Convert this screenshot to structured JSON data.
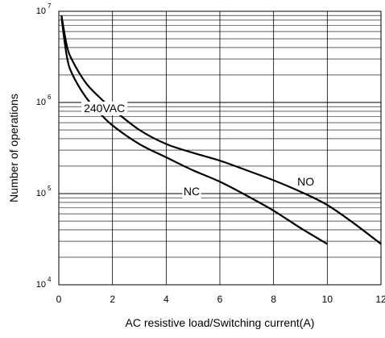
{
  "chart_data": {
    "type": "line",
    "title": "",
    "xlabel": "AC resistive load/Switching current(A)",
    "ylabel": "Number of operations",
    "xlim": [
      0,
      12
    ],
    "ylim": [
      10000,
      10000000
    ],
    "yscale": "log",
    "grid": true,
    "x_ticks": [
      "0",
      "2",
      "4",
      "6",
      "8",
      "10",
      "12"
    ],
    "y_ticks": [
      {
        "base": "10",
        "exp": "4",
        "value": 10000
      },
      {
        "base": "10",
        "exp": "5",
        "value": 100000
      },
      {
        "base": "10",
        "exp": "6",
        "value": 1000000
      },
      {
        "base": "10",
        "exp": "7",
        "value": 10000000
      }
    ],
    "annotations": [
      {
        "text": "240VAC",
        "x": 1.7,
        "y": 800000
      },
      {
        "text": "NO",
        "x": 9.2,
        "y": 125000
      },
      {
        "text": "NC",
        "x": 4.95,
        "y": 98000
      }
    ],
    "series": [
      {
        "name": "NO",
        "x": [
          0.1,
          0.3,
          0.5,
          1,
          1.5,
          2,
          3,
          4,
          5,
          6,
          7,
          8,
          9,
          10,
          11,
          12
        ],
        "y": [
          9000000,
          4200000,
          2900000,
          1650000,
          1150000,
          850000,
          500000,
          350000,
          280000,
          230000,
          180000,
          140000,
          105000,
          75000,
          47000,
          28000
        ]
      },
      {
        "name": "NC",
        "x": [
          0.1,
          0.3,
          0.5,
          1,
          1.5,
          2,
          3,
          4,
          5,
          6,
          7,
          8,
          9,
          10
        ],
        "y": [
          8500000,
          3200000,
          2050000,
          1150000,
          780000,
          560000,
          350000,
          250000,
          180000,
          135000,
          95000,
          65000,
          42000,
          28000
        ]
      }
    ],
    "colors": {
      "line": "#000000",
      "grid": "#000000",
      "background": "#ffffff"
    }
  }
}
